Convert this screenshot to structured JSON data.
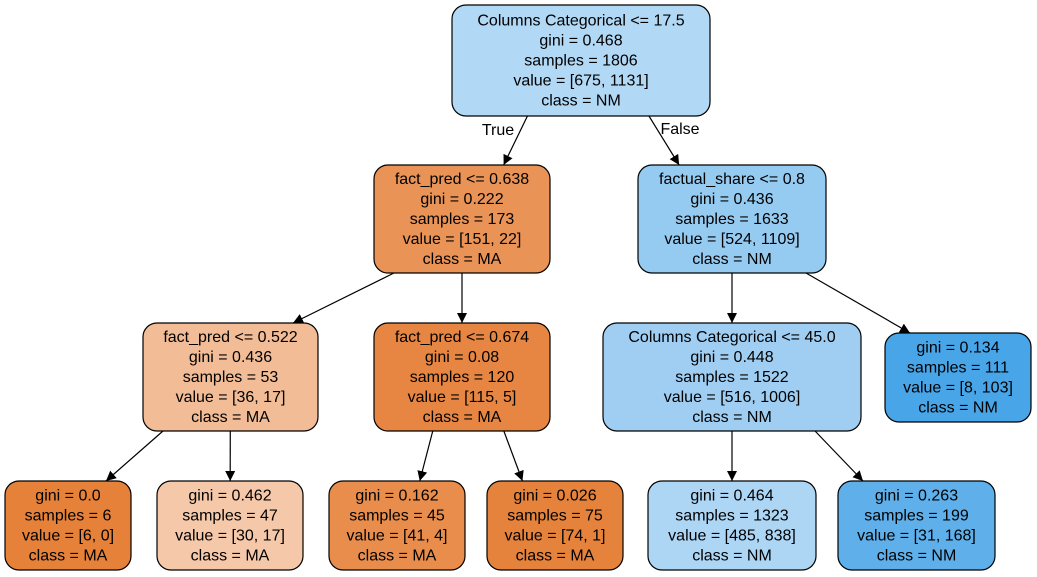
{
  "nodes": [
    {
      "id": "n0",
      "lines": [
        "Columns Categorical <= 17.5",
        "gini = 0.468",
        "samples = 1806",
        "value = [675, 1131]",
        "class = NM"
      ],
      "fill": "#b1d8f5"
    },
    {
      "id": "n1",
      "lines": [
        "fact_pred <= 0.638",
        "gini = 0.222",
        "samples = 173",
        "value = [151, 22]",
        "class = MA"
      ],
      "fill": "#e99356"
    },
    {
      "id": "n2",
      "lines": [
        "factual_share <= 0.8",
        "gini = 0.436",
        "samples = 1633",
        "value = [524, 1109]",
        "class = NM"
      ],
      "fill": "#96cbf1"
    },
    {
      "id": "n3",
      "lines": [
        "fact_pred <= 0.522",
        "gini = 0.436",
        "samples = 53",
        "value = [36, 17]",
        "class = MA"
      ],
      "fill": "#f1bc96"
    },
    {
      "id": "n4",
      "lines": [
        "fact_pred <= 0.674",
        "gini = 0.08",
        "samples = 120",
        "value = [115, 5]",
        "class = MA"
      ],
      "fill": "#e68642"
    },
    {
      "id": "n5",
      "lines": [
        "Columns Categorical <= 45.0",
        "gini = 0.448",
        "samples = 1522",
        "value = [516, 1006]",
        "class = NM"
      ],
      "fill": "#9fcef2"
    },
    {
      "id": "n6",
      "lines": [
        "gini = 0.134",
        "samples = 111",
        "value = [8, 103]",
        "class = NM"
      ],
      "fill": "#48a5e7"
    },
    {
      "id": "n7",
      "lines": [
        "gini = 0.0",
        "samples = 6",
        "value = [6, 0]",
        "class = MA"
      ],
      "fill": "#e58139"
    },
    {
      "id": "n8",
      "lines": [
        "gini = 0.462",
        "samples = 47",
        "value = [30, 17]",
        "class = MA"
      ],
      "fill": "#f4c8a9"
    },
    {
      "id": "n9",
      "lines": [
        "gini = 0.162",
        "samples = 45",
        "value = [41, 4]",
        "class = MA"
      ],
      "fill": "#e88d4c"
    },
    {
      "id": "n10",
      "lines": [
        "gini = 0.026",
        "samples = 75",
        "value = [74, 1]",
        "class = MA"
      ],
      "fill": "#e5833c"
    },
    {
      "id": "n11",
      "lines": [
        "gini = 0.464",
        "samples = 1323",
        "value = [485, 838]",
        "class = NM"
      ],
      "fill": "#acd6f4"
    },
    {
      "id": "n12",
      "lines": [
        "gini = 0.263",
        "samples = 199",
        "value = [31, 168]",
        "class = NM"
      ],
      "fill": "#5eafea"
    }
  ],
  "edges": [
    {
      "from": "n0",
      "to": "n1",
      "label": "True"
    },
    {
      "from": "n0",
      "to": "n2",
      "label": "False"
    },
    {
      "from": "n1",
      "to": "n3",
      "label": ""
    },
    {
      "from": "n1",
      "to": "n4",
      "label": ""
    },
    {
      "from": "n2",
      "to": "n5",
      "label": ""
    },
    {
      "from": "n2",
      "to": "n6",
      "label": ""
    },
    {
      "from": "n3",
      "to": "n7",
      "label": ""
    },
    {
      "from": "n3",
      "to": "n8",
      "label": ""
    },
    {
      "from": "n4",
      "to": "n9",
      "label": ""
    },
    {
      "from": "n4",
      "to": "n10",
      "label": ""
    },
    {
      "from": "n5",
      "to": "n11",
      "label": ""
    },
    {
      "from": "n5",
      "to": "n12",
      "label": ""
    }
  ]
}
